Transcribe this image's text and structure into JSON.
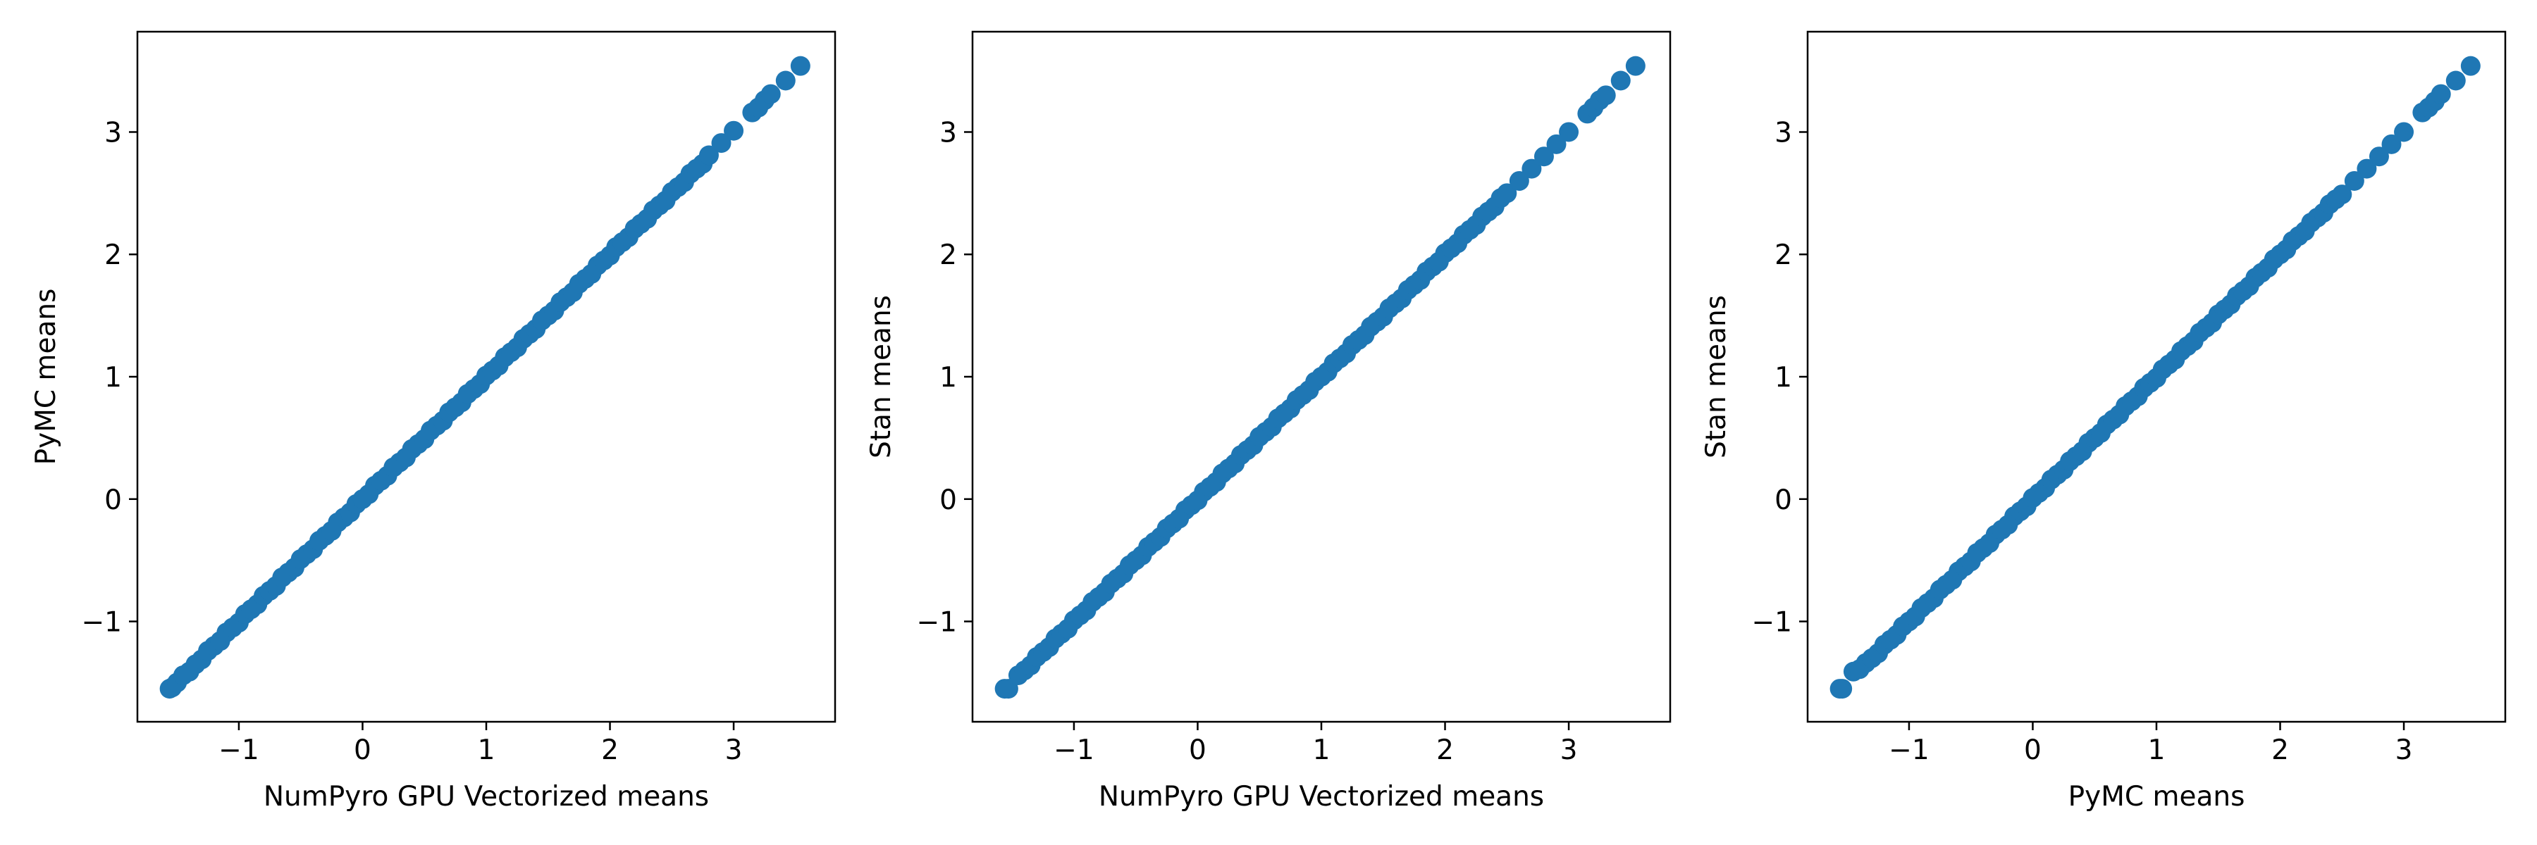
{
  "marker_color": "#1f77b4",
  "chart_data": [
    {
      "type": "scatter",
      "title": "",
      "xlabel": "NumPyro GPU Vectorized means",
      "ylabel": "PyMC means",
      "xlim": [
        -1.82,
        3.82
      ],
      "ylim": [
        -1.82,
        3.82
      ],
      "xticks": [
        -1,
        0,
        1,
        2,
        3
      ],
      "yticks": [
        -1,
        0,
        1,
        2,
        3
      ],
      "xtick_labels": [
        "−1",
        "0",
        "1",
        "2",
        "3"
      ],
      "ytick_labels": [
        "−1",
        "0",
        "1",
        "2",
        "3"
      ],
      "grid": false,
      "legend": "none",
      "x": [
        -1.56,
        -1.54,
        -1.5,
        -1.45,
        -1.4,
        -1.35,
        -1.3,
        -1.25,
        -1.2,
        -1.15,
        -1.1,
        -1.05,
        -1.0,
        -0.95,
        -0.9,
        -0.85,
        -0.8,
        -0.75,
        -0.7,
        -0.65,
        -0.6,
        -0.55,
        -0.5,
        -0.45,
        -0.4,
        -0.35,
        -0.3,
        -0.25,
        -0.2,
        -0.15,
        -0.1,
        -0.05,
        0.0,
        0.05,
        0.1,
        0.15,
        0.2,
        0.25,
        0.3,
        0.35,
        0.4,
        0.45,
        0.5,
        0.55,
        0.6,
        0.65,
        0.7,
        0.75,
        0.8,
        0.85,
        0.9,
        0.95,
        1.0,
        1.05,
        1.1,
        1.15,
        1.2,
        1.25,
        1.3,
        1.35,
        1.4,
        1.45,
        1.5,
        1.55,
        1.6,
        1.65,
        1.7,
        1.75,
        1.8,
        1.85,
        1.9,
        1.95,
        2.0,
        2.05,
        2.1,
        2.15,
        2.2,
        2.25,
        2.3,
        2.35,
        2.4,
        2.45,
        2.5,
        2.55,
        2.6,
        2.65,
        2.7,
        2.75,
        2.8,
        2.9,
        3.0,
        3.15,
        3.2,
        3.25,
        3.3,
        3.42,
        3.54
      ],
      "y": [
        -1.55,
        -1.54,
        -1.5,
        -1.44,
        -1.41,
        -1.35,
        -1.31,
        -1.24,
        -1.2,
        -1.16,
        -1.09,
        -1.05,
        -1.01,
        -0.94,
        -0.9,
        -0.86,
        -0.79,
        -0.75,
        -0.71,
        -0.64,
        -0.6,
        -0.56,
        -0.49,
        -0.45,
        -0.41,
        -0.34,
        -0.3,
        -0.26,
        -0.19,
        -0.15,
        -0.11,
        -0.04,
        0.0,
        0.04,
        0.11,
        0.15,
        0.19,
        0.26,
        0.3,
        0.34,
        0.41,
        0.45,
        0.49,
        0.56,
        0.6,
        0.64,
        0.71,
        0.75,
        0.79,
        0.86,
        0.9,
        0.94,
        1.01,
        1.05,
        1.09,
        1.16,
        1.2,
        1.24,
        1.31,
        1.35,
        1.39,
        1.46,
        1.5,
        1.54,
        1.61,
        1.65,
        1.69,
        1.76,
        1.8,
        1.84,
        1.91,
        1.95,
        1.99,
        2.06,
        2.1,
        2.14,
        2.21,
        2.25,
        2.29,
        2.36,
        2.4,
        2.44,
        2.51,
        2.55,
        2.59,
        2.66,
        2.7,
        2.74,
        2.81,
        2.91,
        3.01,
        3.16,
        3.2,
        3.26,
        3.31,
        3.42,
        3.54
      ]
    },
    {
      "type": "scatter",
      "title": "",
      "xlabel": "NumPyro GPU Vectorized means",
      "ylabel": "Stan means",
      "xlim": [
        -1.82,
        3.82
      ],
      "ylim": [
        -1.82,
        3.82
      ],
      "xticks": [
        -1,
        0,
        1,
        2,
        3
      ],
      "yticks": [
        -1,
        0,
        1,
        2,
        3
      ],
      "xtick_labels": [
        "−1",
        "0",
        "1",
        "2",
        "3"
      ],
      "ytick_labels": [
        "−1",
        "0",
        "1",
        "2",
        "3"
      ],
      "grid": false,
      "legend": "none",
      "x": [
        -1.56,
        -1.53,
        -1.45,
        -1.4,
        -1.35,
        -1.3,
        -1.25,
        -1.2,
        -1.15,
        -1.1,
        -1.05,
        -1.0,
        -0.95,
        -0.9,
        -0.85,
        -0.8,
        -0.75,
        -0.7,
        -0.65,
        -0.6,
        -0.55,
        -0.5,
        -0.45,
        -0.4,
        -0.35,
        -0.3,
        -0.25,
        -0.2,
        -0.15,
        -0.1,
        -0.05,
        0.0,
        0.05,
        0.1,
        0.15,
        0.2,
        0.25,
        0.3,
        0.35,
        0.4,
        0.45,
        0.5,
        0.55,
        0.6,
        0.65,
        0.7,
        0.75,
        0.8,
        0.85,
        0.9,
        0.95,
        1.0,
        1.05,
        1.1,
        1.15,
        1.2,
        1.25,
        1.3,
        1.35,
        1.4,
        1.45,
        1.5,
        1.55,
        1.6,
        1.65,
        1.7,
        1.75,
        1.8,
        1.85,
        1.9,
        1.95,
        2.0,
        2.05,
        2.1,
        2.15,
        2.2,
        2.25,
        2.3,
        2.35,
        2.4,
        2.45,
        2.5,
        2.6,
        2.7,
        2.8,
        2.9,
        3.0,
        3.15,
        3.2,
        3.25,
        3.3,
        3.42,
        3.54
      ],
      "y": [
        -1.55,
        -1.55,
        -1.44,
        -1.4,
        -1.36,
        -1.29,
        -1.25,
        -1.21,
        -1.14,
        -1.1,
        -1.06,
        -0.99,
        -0.95,
        -0.91,
        -0.84,
        -0.8,
        -0.76,
        -0.69,
        -0.65,
        -0.61,
        -0.54,
        -0.5,
        -0.46,
        -0.39,
        -0.35,
        -0.31,
        -0.24,
        -0.2,
        -0.16,
        -0.09,
        -0.05,
        -0.01,
        0.06,
        0.1,
        0.14,
        0.21,
        0.25,
        0.29,
        0.36,
        0.4,
        0.44,
        0.51,
        0.55,
        0.59,
        0.66,
        0.7,
        0.74,
        0.81,
        0.85,
        0.89,
        0.96,
        1.0,
        1.04,
        1.11,
        1.15,
        1.19,
        1.26,
        1.3,
        1.34,
        1.41,
        1.45,
        1.49,
        1.56,
        1.6,
        1.64,
        1.71,
        1.75,
        1.79,
        1.86,
        1.9,
        1.94,
        2.01,
        2.05,
        2.09,
        2.16,
        2.2,
        2.24,
        2.31,
        2.35,
        2.39,
        2.46,
        2.5,
        2.6,
        2.7,
        2.8,
        2.9,
        3.0,
        3.15,
        3.2,
        3.26,
        3.3,
        3.42,
        3.54
      ]
    },
    {
      "type": "scatter",
      "title": "",
      "xlabel": "PyMC means",
      "ylabel": "Stan means",
      "xlim": [
        -1.82,
        3.82
      ],
      "ylim": [
        -1.82,
        3.82
      ],
      "xticks": [
        -1,
        0,
        1,
        2,
        3
      ],
      "yticks": [
        -1,
        0,
        1,
        2,
        3
      ],
      "xtick_labels": [
        "−1",
        "0",
        "1",
        "2",
        "3"
      ],
      "ytick_labels": [
        "−1",
        "0",
        "1",
        "2",
        "3"
      ],
      "grid": false,
      "legend": "none",
      "x": [
        -1.56,
        -1.54,
        -1.45,
        -1.4,
        -1.35,
        -1.3,
        -1.25,
        -1.2,
        -1.15,
        -1.1,
        -1.05,
        -1.0,
        -0.95,
        -0.9,
        -0.85,
        -0.8,
        -0.75,
        -0.7,
        -0.65,
        -0.6,
        -0.55,
        -0.5,
        -0.45,
        -0.4,
        -0.35,
        -0.3,
        -0.25,
        -0.2,
        -0.15,
        -0.1,
        -0.05,
        0.0,
        0.05,
        0.1,
        0.15,
        0.2,
        0.25,
        0.3,
        0.35,
        0.4,
        0.45,
        0.5,
        0.55,
        0.6,
        0.65,
        0.7,
        0.75,
        0.8,
        0.85,
        0.9,
        0.95,
        1.0,
        1.05,
        1.1,
        1.15,
        1.2,
        1.25,
        1.3,
        1.35,
        1.4,
        1.45,
        1.5,
        1.55,
        1.6,
        1.65,
        1.7,
        1.75,
        1.8,
        1.85,
        1.9,
        1.95,
        2.0,
        2.05,
        2.1,
        2.15,
        2.2,
        2.25,
        2.3,
        2.35,
        2.4,
        2.45,
        2.5,
        2.6,
        2.7,
        2.8,
        2.9,
        3.0,
        3.15,
        3.2,
        3.25,
        3.3,
        3.42,
        3.54
      ],
      "y": [
        -1.55,
        -1.55,
        -1.41,
        -1.39,
        -1.34,
        -1.3,
        -1.26,
        -1.19,
        -1.15,
        -1.11,
        -1.04,
        -1.0,
        -0.96,
        -0.89,
        -0.85,
        -0.81,
        -0.74,
        -0.7,
        -0.66,
        -0.59,
        -0.55,
        -0.51,
        -0.44,
        -0.4,
        -0.36,
        -0.29,
        -0.25,
        -0.21,
        -0.14,
        -0.1,
        -0.06,
        0.01,
        0.05,
        0.09,
        0.16,
        0.2,
        0.24,
        0.31,
        0.35,
        0.39,
        0.46,
        0.5,
        0.54,
        0.61,
        0.65,
        0.69,
        0.76,
        0.8,
        0.84,
        0.91,
        0.95,
        0.99,
        1.06,
        1.1,
        1.14,
        1.21,
        1.25,
        1.29,
        1.36,
        1.4,
        1.44,
        1.51,
        1.55,
        1.59,
        1.66,
        1.7,
        1.74,
        1.81,
        1.85,
        1.89,
        1.96,
        2.0,
        2.04,
        2.11,
        2.15,
        2.19,
        2.26,
        2.3,
        2.34,
        2.41,
        2.45,
        2.49,
        2.6,
        2.7,
        2.8,
        2.9,
        3.0,
        3.16,
        3.2,
        3.25,
        3.31,
        3.42,
        3.54
      ]
    }
  ]
}
